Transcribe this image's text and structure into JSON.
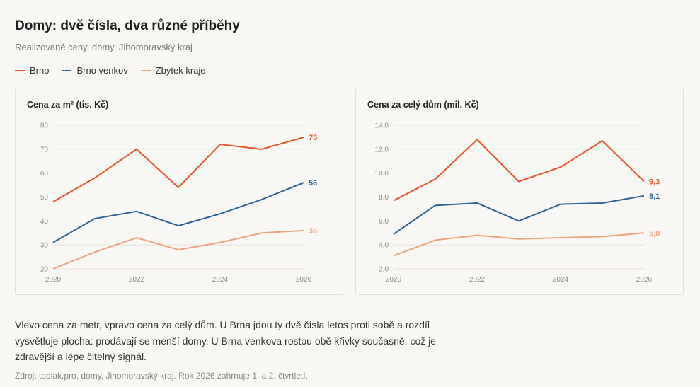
{
  "header": {
    "title": "Domy: dvě čísla, dva různé příběhy",
    "subtitle": "Realizované ceny, domy, Jihomoravský kraj"
  },
  "legend": [
    {
      "label": "Brno",
      "color": "#e8552a"
    },
    {
      "label": "Brno venkov",
      "color": "#2a6496"
    },
    {
      "label": "Zbytek kraje",
      "color": "#eda47c"
    }
  ],
  "chart_data": [
    {
      "type": "line",
      "title": "Cena za m² (tis. Kč)",
      "x": [
        2020,
        2021,
        2022,
        2023,
        2024,
        2025,
        2026
      ],
      "x_ticks": [
        "2020",
        "2022",
        "2024",
        "2026"
      ],
      "y_ticks": [
        "20",
        "30",
        "40",
        "50",
        "60",
        "70",
        "80"
      ],
      "ylim": [
        20,
        80
      ],
      "grid": true,
      "series": [
        {
          "name": "Brno",
          "color": "#e8552a",
          "values": [
            48,
            58,
            70,
            54,
            72,
            70,
            75
          ],
          "end_label": "75"
        },
        {
          "name": "Brno venkov",
          "color": "#2a6496",
          "values": [
            31,
            41,
            44,
            38,
            43,
            49,
            56
          ],
          "end_label": "56"
        },
        {
          "name": "Zbytek kraje",
          "color": "#eda47c",
          "values": [
            20,
            27,
            33,
            28,
            31,
            35,
            36
          ],
          "end_label": "36"
        }
      ]
    },
    {
      "type": "line",
      "title": "Cena za celý dům (mil. Kč)",
      "x": [
        2020,
        2021,
        2022,
        2023,
        2024,
        2025,
        2026
      ],
      "x_ticks": [
        "2020",
        "2022",
        "2024",
        "2026"
      ],
      "y_ticks": [
        "2,0",
        "4,0",
        "6,0",
        "8,0",
        "10,0",
        "12,0",
        "14,0"
      ],
      "ylim": [
        2,
        14
      ],
      "grid": true,
      "series": [
        {
          "name": "Brno",
          "color": "#e8552a",
          "values": [
            7.7,
            9.5,
            12.8,
            9.3,
            10.5,
            12.7,
            9.3
          ],
          "end_label": "9,3"
        },
        {
          "name": "Brno venkov",
          "color": "#2a6496",
          "values": [
            4.9,
            7.3,
            7.5,
            6.0,
            7.4,
            7.5,
            8.1
          ],
          "end_label": "8,1"
        },
        {
          "name": "Zbytek kraje",
          "color": "#eda47c",
          "values": [
            3.1,
            4.4,
            4.8,
            4.5,
            4.6,
            4.7,
            5.0
          ],
          "end_label": "5,0"
        }
      ]
    }
  ],
  "body_text": "Vlevo cena za metr, vpravo cena za celý dům. U Brna jdou ty dvě čísla letos proti sobě a rozdíl vysvětluje plocha: prodávají se menší domy. U Brna venkova rostou obě křivky současně, což je zdravější a lépe čitelný signál.",
  "source": "Zdroj: toplak.pro, domy, Jihomoravský kraj. Rok 2026 zahrnuje 1. a 2. čtvrtletí."
}
